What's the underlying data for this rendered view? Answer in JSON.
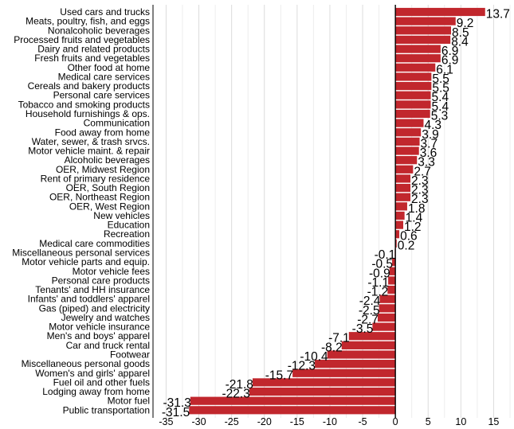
{
  "chart_data": {
    "type": "bar",
    "orientation": "horizontal",
    "title": "",
    "xlabel": "",
    "ylabel": "",
    "xlim": [
      -37,
      17.5
    ],
    "x_ticks": [
      -35,
      -30,
      -25,
      -20,
      -15,
      -10,
      -5,
      0,
      5,
      10,
      15
    ],
    "grid": "vertical",
    "bar_color": "#c1272d",
    "categories": [
      "Used cars and trucks",
      "Meats, poultry, fish, and eggs",
      "Nonalcoholic beverages",
      "Processed fruits and vegetables",
      "Dairy and related products",
      "Fresh fruits and vegetables",
      "Other food at home",
      "Medical care services",
      "Cereals and bakery products",
      "Personal care services",
      "Tobacco and smoking products",
      "Household furnishings & ops.",
      "Communication",
      "Food away from home",
      "Water, sewer, & trash srvcs.",
      "Motor vehicle maint. & repair",
      "Alcoholic beverages",
      "OER, Midwest Region",
      "Rent of primary residence",
      "OER, South Region",
      "OER, Northeast Region",
      "OER, West Region",
      "New vehicles",
      "Education",
      "Recreation",
      "Medical care commodities",
      "Miscellaneous personal services",
      "Motor vehicle parts and equip.",
      "Motor vehicle fees",
      "Personal care products",
      "Tenants'  and HH insurance",
      "Infants' and toddlers' apparel",
      "Gas (piped) and electricity",
      "Jewelry and watches",
      "Motor vehicle insurance",
      "Men's and boys' apparel",
      "Car and truck rental",
      "Footwear",
      "Miscellaneous personal goods",
      "Women's and girls' apparel",
      "Fuel oil and other fuels",
      "Lodging away from home",
      "Motor fuel",
      "Public transportation"
    ],
    "values": [
      13.7,
      9.2,
      8.5,
      8.4,
      6.9,
      6.9,
      6.1,
      5.5,
      5.5,
      5.4,
      5.4,
      5.3,
      4.3,
      3.9,
      3.7,
      3.6,
      3.3,
      2.7,
      2.3,
      2.3,
      2.3,
      1.8,
      1.4,
      1.2,
      0.6,
      0.2,
      -0.1,
      -0.5,
      -0.9,
      -1.1,
      -1.2,
      -2.4,
      -2.5,
      -2.7,
      -3.5,
      -7.1,
      -8.2,
      -10.4,
      -12.3,
      -15.7,
      -21.8,
      -22.3,
      -31.3,
      -31.5
    ],
    "value_labels": [
      "13.7",
      "9.2",
      "8.5",
      "8.4",
      "6.9",
      "6.9",
      "6.1",
      "5.5",
      "5.5",
      "5.4",
      "5.4",
      "5.3",
      "4.3",
      "3.9",
      "3.7",
      "3.6",
      "3.3",
      "2.7",
      "2.3",
      "2.3",
      "2.3",
      "1.8",
      "1.4",
      "1.2",
      "0.6",
      "0.2",
      "-0.1",
      "-0.5",
      "-0.9",
      "-1.1",
      "-1.2",
      "-2.4",
      "-2.5",
      "-2.7",
      "-3.5",
      "-7.1",
      "-8.2",
      "-10.4",
      "-12.3",
      "-15.7",
      "-21.8",
      "-22.3",
      "-31.3",
      "-31.5"
    ]
  }
}
